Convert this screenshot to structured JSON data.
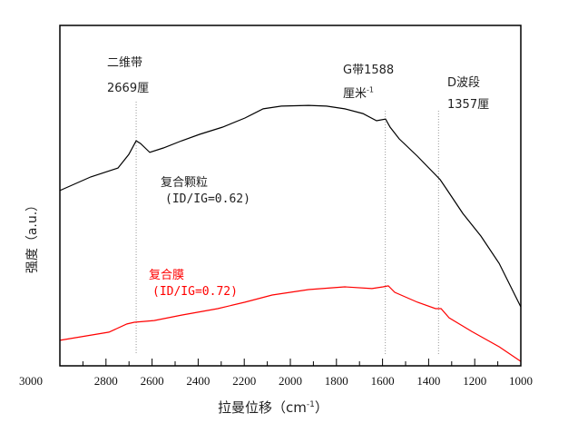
{
  "chart_data": {
    "type": "line",
    "xlabel": "拉曼位移（cm",
    "xlabel_sup": "-1",
    "xlabel_end": "）",
    "ylabel": "强度（a.u.）",
    "xlim": [
      3000,
      1000
    ],
    "x_reversed": true,
    "ylim": [
      0,
      100
    ],
    "grid": false,
    "xticks": [
      3000,
      2800,
      2600,
      2400,
      2200,
      2000,
      1800,
      1600,
      1400,
      1200,
      1000
    ],
    "series": [
      {
        "name": "复合颗粒",
        "color": "#000000",
        "x": [
          3000,
          2866,
          2748,
          2701,
          2669,
          2650,
          2610,
          2551,
          2472,
          2394,
          2295,
          2197,
          2118,
          2039,
          1921,
          1843,
          1764,
          1685,
          1626,
          1587,
          1567,
          1528,
          1449,
          1350,
          1323,
          1252,
          1173,
          1094,
          1000
        ],
        "y": [
          51.5,
          55.5,
          58.1,
          62.1,
          66.1,
          65.3,
          62.7,
          64,
          66.1,
          68,
          70.1,
          72.8,
          75.5,
          76.3,
          76.5,
          76.3,
          75.5,
          74.1,
          72,
          72.5,
          70.1,
          66.7,
          61.6,
          54.7,
          52,
          44.8,
          38.1,
          30.1,
          17.3
        ]
      },
      {
        "name": "复合膜",
        "color": "#ff0000",
        "x": [
          3000,
          2787,
          2709,
          2677,
          2591,
          2472,
          2315,
          2197,
          2079,
          1921,
          1764,
          1646,
          1598,
          1575,
          1547,
          1449,
          1370,
          1346,
          1311,
          1213,
          1094,
          1000
        ],
        "y": [
          7.5,
          9.9,
          12.3,
          12.8,
          13.3,
          14.9,
          16.8,
          18.7,
          20.8,
          22.4,
          23.2,
          22.7,
          23.2,
          23.5,
          21.6,
          18.7,
          16.8,
          16.8,
          14.1,
          10.1,
          5.6,
          1.3
        ]
      }
    ],
    "reference_lines": [
      2669,
      1588,
      1357
    ],
    "annotations": {
      "band2d": {
        "line1": "二维带",
        "line2": "2669厘"
      },
      "gband": {
        "line1": "G带1588",
        "line2": "厘米",
        "sup": "-1"
      },
      "dband": {
        "line1": "D波段",
        "line2": "1357厘"
      },
      "particle": {
        "name": "复合颗粒",
        "ratio": "(ID/IG=0.62)"
      },
      "film": {
        "name": "复合膜",
        "ratio": "(ID/IG=0.72)"
      }
    }
  }
}
